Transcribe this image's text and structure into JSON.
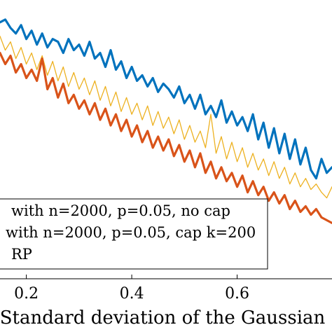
{
  "chart_data": {
    "type": "line",
    "xlabel": "Standard deviation of the Gaussian",
    "ylabel": "",
    "title": "",
    "xlim": [
      0.15,
      0.78
    ],
    "ylim": [
      0,
      1
    ],
    "x_ticks": [
      0.2,
      0.4,
      0.6
    ],
    "x_tick_labels": [
      "0.2",
      "0.4",
      "0.6"
    ],
    "grid": false,
    "legend_placement": "bottom-left",
    "series": [
      {
        "name": "with n=2000, p=0.05, no cap",
        "color": "#0072BD",
        "x": [
          0.15,
          0.16,
          0.17,
          0.18,
          0.19,
          0.2,
          0.21,
          0.22,
          0.23,
          0.24,
          0.25,
          0.26,
          0.27,
          0.28,
          0.29,
          0.3,
          0.31,
          0.32,
          0.33,
          0.34,
          0.35,
          0.36,
          0.37,
          0.38,
          0.39,
          0.4,
          0.41,
          0.42,
          0.43,
          0.44,
          0.45,
          0.46,
          0.47,
          0.48,
          0.49,
          0.5,
          0.51,
          0.52,
          0.53,
          0.54,
          0.55,
          0.56,
          0.57,
          0.58,
          0.59,
          0.6,
          0.61,
          0.62,
          0.63,
          0.64,
          0.65,
          0.66,
          0.67,
          0.68,
          0.69,
          0.7,
          0.71,
          0.72,
          0.73,
          0.74,
          0.75,
          0.76,
          0.77,
          0.78
        ],
        "y": [
          0.92,
          0.93,
          0.9,
          0.88,
          0.91,
          0.86,
          0.89,
          0.84,
          0.88,
          0.83,
          0.86,
          0.85,
          0.81,
          0.86,
          0.82,
          0.84,
          0.8,
          0.85,
          0.79,
          0.81,
          0.76,
          0.82,
          0.75,
          0.78,
          0.72,
          0.76,
          0.71,
          0.73,
          0.69,
          0.72,
          0.67,
          0.7,
          0.68,
          0.65,
          0.69,
          0.63,
          0.66,
          0.61,
          0.66,
          0.59,
          0.62,
          0.58,
          0.64,
          0.56,
          0.6,
          0.55,
          0.58,
          0.53,
          0.59,
          0.5,
          0.56,
          0.47,
          0.54,
          0.45,
          0.52,
          0.43,
          0.5,
          0.41,
          0.47,
          0.39,
          0.36,
          0.43,
          0.38,
          0.4
        ]
      },
      {
        "name": "with n=2000, p=0.05, cap k=200",
        "color": "#D95319",
        "x": [
          0.15,
          0.16,
          0.17,
          0.18,
          0.19,
          0.2,
          0.21,
          0.22,
          0.23,
          0.24,
          0.25,
          0.26,
          0.27,
          0.28,
          0.29,
          0.3,
          0.31,
          0.32,
          0.33,
          0.34,
          0.35,
          0.36,
          0.37,
          0.38,
          0.39,
          0.4,
          0.41,
          0.42,
          0.43,
          0.44,
          0.45,
          0.46,
          0.47,
          0.48,
          0.49,
          0.5,
          0.51,
          0.52,
          0.53,
          0.54,
          0.55,
          0.56,
          0.57,
          0.58,
          0.59,
          0.6,
          0.61,
          0.62,
          0.63,
          0.64,
          0.65,
          0.66,
          0.67,
          0.68,
          0.69,
          0.7,
          0.71,
          0.72,
          0.73,
          0.74,
          0.75,
          0.76,
          0.77,
          0.78
        ],
        "y": [
          0.81,
          0.77,
          0.8,
          0.74,
          0.77,
          0.72,
          0.75,
          0.71,
          0.79,
          0.68,
          0.72,
          0.65,
          0.7,
          0.63,
          0.66,
          0.61,
          0.64,
          0.59,
          0.63,
          0.57,
          0.61,
          0.55,
          0.59,
          0.53,
          0.57,
          0.51,
          0.55,
          0.49,
          0.53,
          0.47,
          0.51,
          0.46,
          0.5,
          0.44,
          0.48,
          0.42,
          0.46,
          0.4,
          0.45,
          0.38,
          0.42,
          0.36,
          0.4,
          0.35,
          0.38,
          0.33,
          0.37,
          0.31,
          0.35,
          0.3,
          0.33,
          0.28,
          0.31,
          0.27,
          0.3,
          0.25,
          0.28,
          0.24,
          0.26,
          0.23,
          0.25,
          0.22,
          0.21,
          0.2
        ]
      },
      {
        "name": "RP",
        "color": "#EDB120",
        "x": [
          0.15,
          0.16,
          0.17,
          0.18,
          0.19,
          0.2,
          0.21,
          0.22,
          0.23,
          0.24,
          0.25,
          0.26,
          0.27,
          0.28,
          0.29,
          0.3,
          0.31,
          0.32,
          0.33,
          0.34,
          0.35,
          0.36,
          0.37,
          0.38,
          0.39,
          0.4,
          0.41,
          0.42,
          0.43,
          0.44,
          0.45,
          0.46,
          0.47,
          0.48,
          0.49,
          0.5,
          0.51,
          0.52,
          0.53,
          0.54,
          0.55,
          0.56,
          0.57,
          0.58,
          0.59,
          0.6,
          0.61,
          0.62,
          0.63,
          0.64,
          0.65,
          0.66,
          0.67,
          0.68,
          0.69,
          0.7,
          0.71,
          0.72,
          0.73,
          0.74,
          0.75,
          0.76,
          0.77,
          0.78
        ],
        "y": [
          0.87,
          0.82,
          0.85,
          0.79,
          0.83,
          0.77,
          0.81,
          0.75,
          0.8,
          0.73,
          0.78,
          0.71,
          0.76,
          0.69,
          0.74,
          0.68,
          0.72,
          0.66,
          0.71,
          0.64,
          0.69,
          0.62,
          0.67,
          0.6,
          0.65,
          0.59,
          0.63,
          0.57,
          0.62,
          0.55,
          0.6,
          0.54,
          0.58,
          0.52,
          0.57,
          0.5,
          0.55,
          0.49,
          0.53,
          0.47,
          0.59,
          0.45,
          0.51,
          0.43,
          0.49,
          0.42,
          0.47,
          0.4,
          0.45,
          0.39,
          0.43,
          0.37,
          0.42,
          0.36,
          0.4,
          0.34,
          0.38,
          0.33,
          0.36,
          0.32,
          0.34,
          0.31,
          0.29,
          0.33
        ]
      }
    ],
    "legend": [
      {
        "text": "with n=2000, p=0.05, no cap",
        "color": "#0072BD"
      },
      {
        "text": "with n=2000, p=0.05, cap k=200",
        "color": "#D95319"
      },
      {
        "text": "RP",
        "color": "#EDB120"
      }
    ]
  }
}
